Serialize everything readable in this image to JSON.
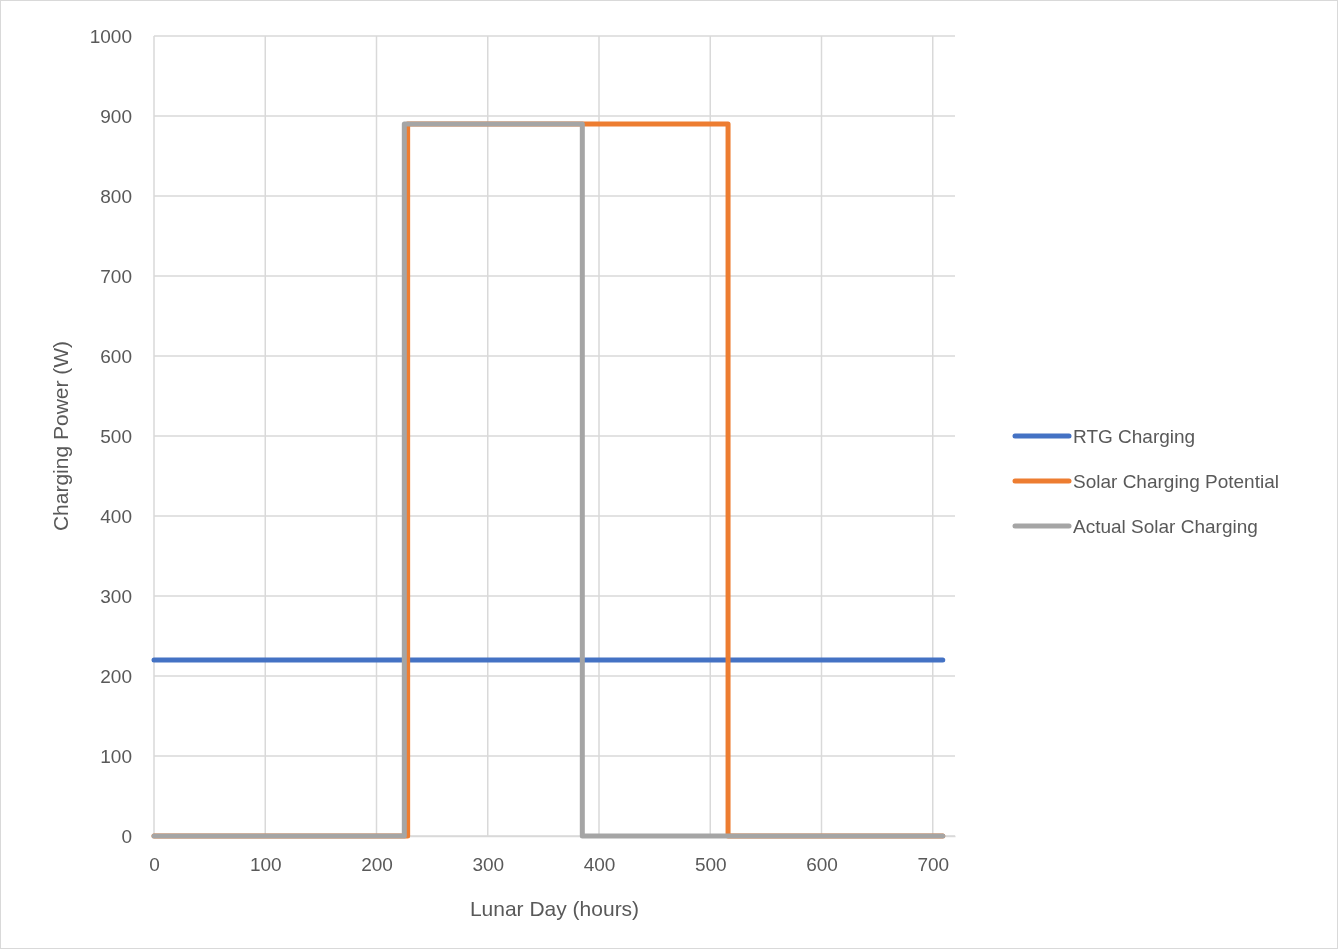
{
  "chart_data": {
    "type": "line",
    "xlabel": "Lunar Day (hours)",
    "ylabel": "Charging Power (W)",
    "xlim": [
      0,
      720
    ],
    "xticks": [
      0,
      100,
      200,
      300,
      400,
      500,
      600,
      700
    ],
    "ylim": [
      0,
      1000
    ],
    "yticks": [
      0,
      100,
      200,
      300,
      400,
      500,
      600,
      700,
      800,
      900,
      1000
    ],
    "grid": true,
    "legend": "right",
    "marker": "none",
    "line_style": "solid",
    "series": [
      {
        "name": "RTG Charging",
        "color": "#4472c4",
        "x": [
          0,
          709
        ],
        "values": [
          220,
          220
        ]
      },
      {
        "name": "Solar Charging Potential",
        "color": "#ed7d31",
        "x": [
          0,
          228,
          228,
          516,
          516,
          709
        ],
        "values": [
          0,
          0,
          890,
          890,
          0,
          0
        ]
      },
      {
        "name": "Actual Solar Charging",
        "color": "#a5a5a5",
        "x": [
          0,
          225,
          225,
          385,
          385,
          709
        ],
        "values": [
          0,
          0,
          890,
          890,
          0,
          0
        ]
      }
    ]
  }
}
